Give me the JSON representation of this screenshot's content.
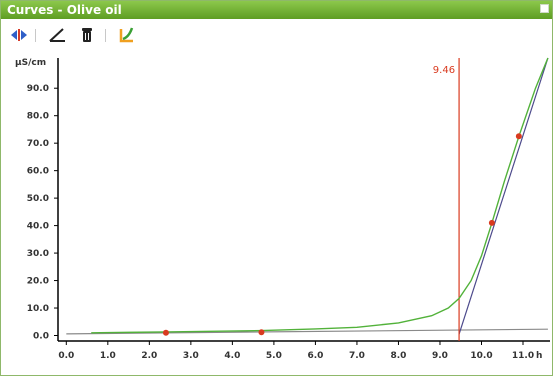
{
  "window": {
    "title": "Curves - Olive oil"
  },
  "toolbar": {
    "buttons": [
      {
        "name": "move-curve-icon",
        "icon": "double-arrow"
      },
      {
        "name": "tangent-tool-icon",
        "icon": "tangent"
      },
      {
        "name": "delete-icon",
        "icon": "trash"
      },
      {
        "name": "curve-settings-icon",
        "icon": "curve-color"
      }
    ]
  },
  "colors": {
    "accent": "#6aa72e",
    "curve": "#52b23a",
    "marker": "#d93a1f",
    "tangent": "#4d4a8c",
    "baseline": "#8a8a8a"
  },
  "chart_data": {
    "type": "line",
    "ylabel": "µS/cm",
    "xlabel": "h",
    "xlim": [
      -0.2,
      11.65
    ],
    "ylim": [
      -2,
      101
    ],
    "x_ticks": [
      "0.0",
      "1.0",
      "2.0",
      "3.0",
      "4.0",
      "5.0",
      "6.0",
      "7.0",
      "8.0",
      "9.0",
      "10.0",
      "11.0"
    ],
    "y_ticks": [
      "0.0",
      "10.0",
      "20.0",
      "30.0",
      "40.0",
      "50.0",
      "60.0",
      "70.0",
      "80.0",
      "90.0"
    ],
    "series": [
      {
        "values": [
          [
            0.6,
            1.0
          ],
          [
            2.4,
            1.3
          ],
          [
            4.7,
            1.8
          ],
          [
            6.0,
            2.4
          ],
          [
            7.0,
            3.0
          ],
          [
            8.0,
            4.6
          ],
          [
            8.8,
            7.2
          ],
          [
            9.2,
            10.0
          ],
          [
            9.46,
            13.5
          ],
          [
            9.75,
            20.0
          ],
          [
            10.0,
            29.0
          ],
          [
            10.25,
            41.0
          ],
          [
            10.55,
            56.0
          ],
          [
            10.9,
            72.5
          ],
          [
            11.3,
            90.0
          ],
          [
            11.6,
            101.0
          ]
        ]
      }
    ],
    "points": [
      [
        2.4,
        1.0
      ],
      [
        4.7,
        1.2
      ],
      [
        10.25,
        41.0
      ],
      [
        10.9,
        72.5
      ]
    ],
    "tangents": [
      {
        "from": [
          0.0,
          0.6
        ],
        "to": [
          11.6,
          2.3
        ]
      },
      {
        "from": [
          9.46,
          0.5
        ],
        "to": [
          11.6,
          101.0
        ]
      }
    ],
    "marker": {
      "x": 9.46,
      "label": "9.46"
    }
  }
}
